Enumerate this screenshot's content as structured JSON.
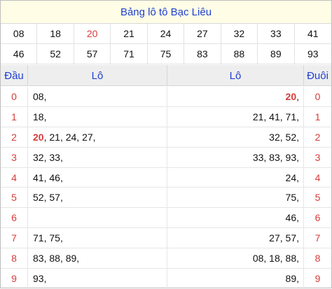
{
  "title": "Bảng lô tô Bạc Liêu",
  "numbers": [
    [
      "08",
      "18",
      "20",
      "21",
      "24",
      "27",
      "32",
      "33",
      "41"
    ],
    [
      "46",
      "52",
      "57",
      "71",
      "75",
      "83",
      "88",
      "89",
      "93"
    ]
  ],
  "highlight_number": "20",
  "header": {
    "dau": "Đầu",
    "lo_left": "Lô",
    "lo_right": "Lô",
    "duoi": "Đuôi"
  },
  "rows": [
    {
      "dau": "0",
      "lo_left": [
        {
          "t": "08"
        }
      ],
      "lo_right": [
        {
          "t": "20",
          "hot": true
        }
      ],
      "duoi": "0"
    },
    {
      "dau": "1",
      "lo_left": [
        {
          "t": "18"
        }
      ],
      "lo_right": [
        {
          "t": "21"
        },
        {
          "t": "41"
        },
        {
          "t": "71"
        }
      ],
      "duoi": "1"
    },
    {
      "dau": "2",
      "lo_left": [
        {
          "t": "20",
          "hot": true
        },
        {
          "t": "21"
        },
        {
          "t": "24"
        },
        {
          "t": "27"
        }
      ],
      "lo_right": [
        {
          "t": "32"
        },
        {
          "t": "52"
        }
      ],
      "duoi": "2"
    },
    {
      "dau": "3",
      "lo_left": [
        {
          "t": "32"
        },
        {
          "t": "33"
        }
      ],
      "lo_right": [
        {
          "t": "33"
        },
        {
          "t": "83"
        },
        {
          "t": "93"
        }
      ],
      "duoi": "3"
    },
    {
      "dau": "4",
      "lo_left": [
        {
          "t": "41"
        },
        {
          "t": "46"
        }
      ],
      "lo_right": [
        {
          "t": "24"
        }
      ],
      "duoi": "4"
    },
    {
      "dau": "5",
      "lo_left": [
        {
          "t": "52"
        },
        {
          "t": "57"
        }
      ],
      "lo_right": [
        {
          "t": "75"
        }
      ],
      "duoi": "5"
    },
    {
      "dau": "6",
      "lo_left": [],
      "lo_right": [
        {
          "t": "46"
        }
      ],
      "duoi": "6"
    },
    {
      "dau": "7",
      "lo_left": [
        {
          "t": "71"
        },
        {
          "t": "75"
        }
      ],
      "lo_right": [
        {
          "t": "27"
        },
        {
          "t": "57"
        }
      ],
      "duoi": "7"
    },
    {
      "dau": "8",
      "lo_left": [
        {
          "t": "83"
        },
        {
          "t": "88"
        },
        {
          "t": "89"
        }
      ],
      "lo_right": [
        {
          "t": "08"
        },
        {
          "t": "18"
        },
        {
          "t": "88"
        }
      ],
      "duoi": "8"
    },
    {
      "dau": "9",
      "lo_left": [
        {
          "t": "93"
        }
      ],
      "lo_right": [
        {
          "t": "89"
        }
      ],
      "duoi": "9"
    }
  ],
  "colors": {
    "title_bg": "#fffde6",
    "accent_blue": "#1f3fcf",
    "accent_red": "#d93b3b",
    "header_bg": "#eeeeee"
  }
}
